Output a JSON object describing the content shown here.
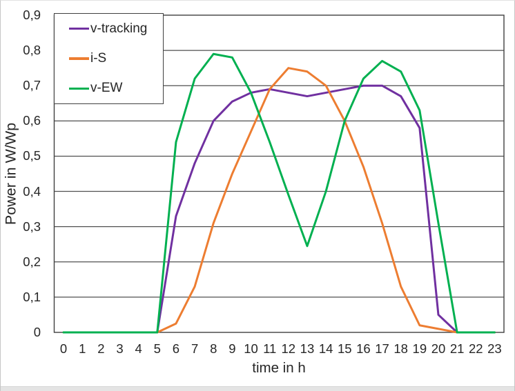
{
  "chart_data": {
    "type": "line",
    "title": "",
    "xlabel": "time in h",
    "ylabel": "Power in W/Wp",
    "x": [
      0,
      1,
      2,
      3,
      4,
      5,
      6,
      7,
      8,
      9,
      10,
      11,
      12,
      13,
      14,
      15,
      16,
      17,
      18,
      19,
      20,
      21,
      22,
      23
    ],
    "x_tick_labels": [
      "0",
      "1",
      "2",
      "3",
      "4",
      "5",
      "6",
      "7",
      "8",
      "9",
      "10",
      "11",
      "12",
      "13",
      "14",
      "15",
      "16",
      "17",
      "18",
      "19",
      "20",
      "21",
      "22",
      "23"
    ],
    "y_tick_labels": [
      "0",
      "0,1",
      "0,2",
      "0,3",
      "0,4",
      "0,5",
      "0,6",
      "0,7",
      "0,8",
      "0,9"
    ],
    "ylim": [
      0,
      0.9
    ],
    "y_step": 0.1,
    "grid": "horizontal",
    "legend_position": "top-left-inside",
    "series": [
      {
        "name": "v-tracking",
        "color": "#7030A0",
        "values": [
          0,
          0,
          0,
          0,
          0,
          0,
          0.33,
          0.48,
          0.6,
          0.655,
          0.68,
          0.69,
          0.68,
          0.67,
          0.68,
          0.69,
          0.7,
          0.7,
          0.67,
          0.58,
          0.05,
          0,
          0,
          0
        ]
      },
      {
        "name": "i-S",
        "color": "#ED7D31",
        "values": [
          0,
          0,
          0,
          0,
          0,
          0,
          0.025,
          0.13,
          0.31,
          0.45,
          0.57,
          0.69,
          0.75,
          0.74,
          0.7,
          0.6,
          0.47,
          0.31,
          0.13,
          0.02,
          0.01,
          0,
          0,
          0
        ]
      },
      {
        "name": "v-EW",
        "color": "#00B050",
        "values": [
          0,
          0,
          0,
          0,
          0,
          0,
          0.54,
          0.72,
          0.79,
          0.78,
          0.68,
          0.54,
          0.39,
          0.245,
          0.4,
          0.6,
          0.72,
          0.77,
          0.74,
          0.63,
          0.31,
          0,
          0,
          0
        ]
      }
    ]
  },
  "axes": {
    "x_title": "time in h",
    "y_title": "Power in W/Wp"
  },
  "legend": {
    "items": [
      {
        "label": "v-tracking",
        "color": "#7030A0"
      },
      {
        "label": "i-S",
        "color": "#ED7D31"
      },
      {
        "label": "v-EW",
        "color": "#00B050"
      }
    ]
  },
  "colors": {
    "grid": "#4f4f4f",
    "plot_border": "#3f3f3f",
    "text": "#262626",
    "background": "#ffffff"
  }
}
